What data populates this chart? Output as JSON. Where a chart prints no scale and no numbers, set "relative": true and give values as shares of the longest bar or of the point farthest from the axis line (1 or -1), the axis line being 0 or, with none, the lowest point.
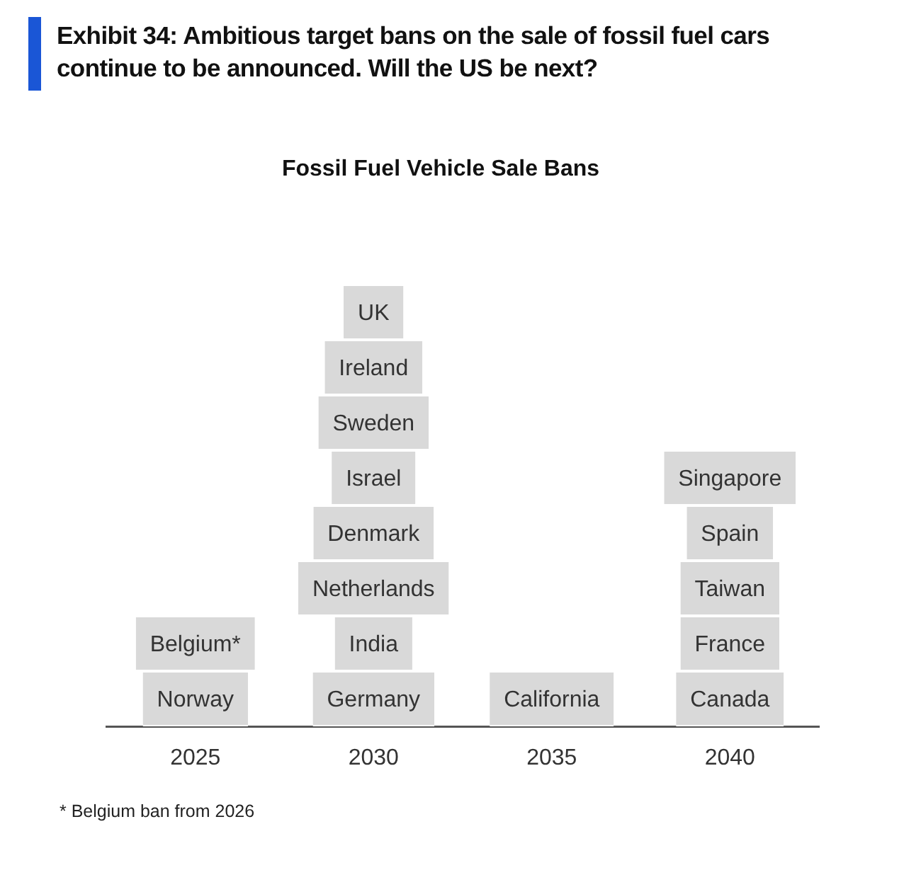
{
  "chart_data": {
    "type": "bar",
    "title": "Exhibit 34: Ambitious target bans on the sale of fossil fuel cars continue to be announced. Will the US be next?",
    "subtitle": "Fossil Fuel Vehicle Sale Bans",
    "categories": [
      "2025",
      "2030",
      "2035",
      "2040"
    ],
    "relative": true,
    "stacked": true,
    "series": [
      {
        "name": "Norway",
        "color": "#d9d9d9",
        "values": [
          0.125,
          null,
          null,
          null
        ]
      },
      {
        "name": "Germany",
        "color": "#d9d9d9",
        "values": [
          null,
          0.125,
          null,
          null
        ]
      },
      {
        "name": "California",
        "color": "#d9d9d9",
        "values": [
          null,
          null,
          0.125,
          null
        ]
      },
      {
        "name": "Canada",
        "color": "#d9d9d9",
        "values": [
          null,
          null,
          null,
          0.125
        ]
      },
      {
        "name": "Belgium*",
        "color": "#d9d9d9",
        "values": [
          0.125,
          null,
          null,
          null
        ]
      },
      {
        "name": "India",
        "color": "#d9d9d9",
        "values": [
          null,
          0.125,
          null,
          null
        ]
      },
      {
        "name": "France",
        "color": "#d9d9d9",
        "values": [
          null,
          null,
          null,
          0.125
        ]
      },
      {
        "name": "Netherlands",
        "color": "#d9d9d9",
        "values": [
          null,
          0.125,
          null,
          null
        ]
      },
      {
        "name": "Taiwan",
        "color": "#d9d9d9",
        "values": [
          null,
          null,
          null,
          0.125
        ]
      },
      {
        "name": "Denmark",
        "color": "#d9d9d9",
        "values": [
          null,
          0.125,
          null,
          null
        ]
      },
      {
        "name": "Spain",
        "color": "#d9d9d9",
        "values": [
          null,
          null,
          null,
          0.125
        ]
      },
      {
        "name": "Israel",
        "color": "#d9d9d9",
        "values": [
          null,
          0.125,
          null,
          null
        ]
      },
      {
        "name": "Singapore",
        "color": "#d9d9d9",
        "values": [
          null,
          null,
          null,
          0.125
        ]
      },
      {
        "name": "Sweden",
        "color": "#d9d9d9",
        "values": [
          null,
          0.125,
          null,
          null
        ]
      },
      {
        "name": "Ireland",
        "color": "#d9d9d9",
        "values": [
          null,
          0.125,
          null,
          null
        ]
      },
      {
        "name": "UK",
        "color": "#d9d9d9",
        "values": [
          null,
          0.125,
          null,
          null
        ]
      }
    ],
    "annotations": [
      "* Belgium ban from 2026"
    ]
  }
}
